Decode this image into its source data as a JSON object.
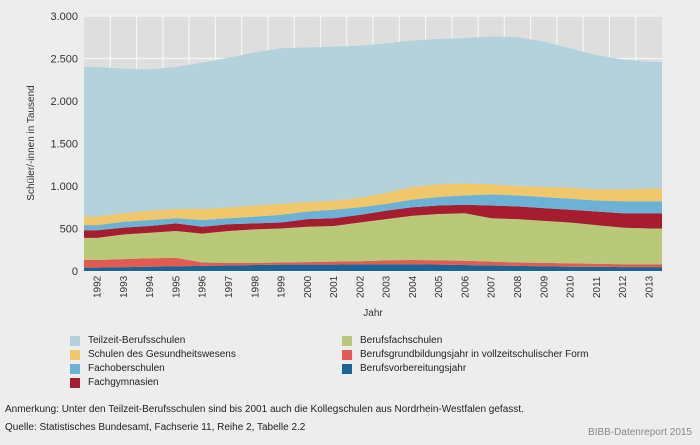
{
  "chart_data": {
    "type": "area",
    "stacked": true,
    "title": "",
    "xlabel": "Jahr",
    "ylabel": "Schüler/-innen in Tausend",
    "ylim": [
      0,
      3000
    ],
    "yticks": [
      0,
      500,
      1000,
      1500,
      2000,
      2500,
      3000
    ],
    "ytick_labels": [
      "0",
      "500",
      "1.000",
      "1.500",
      "2.000",
      "2.500",
      "3.000"
    ],
    "grid": true,
    "legend_position": "bottom",
    "categories": [
      "1992",
      "1993",
      "1994",
      "1995",
      "1996",
      "1997",
      "1998",
      "1999",
      "2000",
      "2001",
      "2002",
      "2003",
      "2004",
      "2005",
      "2006",
      "2007",
      "2008",
      "2009",
      "2010",
      "2011",
      "2012",
      "2013"
    ],
    "series": [
      {
        "name": "Berufsvorbereitungsjahr",
        "color": "#1a6496",
        "values": [
          40,
          45,
          50,
          55,
          60,
          65,
          70,
          75,
          75,
          75,
          80,
          80,
          80,
          75,
          70,
          65,
          60,
          55,
          50,
          50,
          45,
          45
        ]
      },
      {
        "name": "Berufsgrundbildungsjahr in vollzeitschulischer Form",
        "color": "#e35a52",
        "values": [
          90,
          95,
          100,
          100,
          40,
          30,
          25,
          25,
          30,
          35,
          35,
          45,
          50,
          50,
          50,
          45,
          40,
          40,
          40,
          35,
          35,
          35
        ]
      },
      {
        "name": "Berufsfachschulen",
        "color": "#b8c97a",
        "values": [
          260,
          290,
          300,
          315,
          340,
          375,
          395,
          400,
          415,
          420,
          455,
          485,
          520,
          545,
          560,
          510,
          510,
          495,
          480,
          455,
          430,
          420
        ]
      },
      {
        "name": "Fachgymnasien",
        "color": "#a51d2f",
        "values": [
          90,
          80,
          80,
          90,
          80,
          80,
          70,
          70,
          90,
          90,
          90,
          100,
          100,
          100,
          100,
          150,
          150,
          150,
          150,
          160,
          170,
          180
        ]
      },
      {
        "name": "Fachoberschulen",
        "color": "#6cb2d6",
        "values": [
          60,
          70,
          70,
          60,
          80,
          70,
          80,
          90,
          90,
          100,
          90,
          80,
          90,
          100,
          110,
          130,
          130,
          130,
          130,
          130,
          140,
          140
        ]
      },
      {
        "name": "Schulen des Gesundheitswesens",
        "color": "#f0c76b",
        "values": [
          100,
          100,
          110,
          110,
          130,
          130,
          130,
          130,
          110,
          110,
          110,
          130,
          150,
          150,
          140,
          120,
          110,
          120,
          130,
          130,
          140,
          150
        ]
      },
      {
        "name": "Teilzeit-Berufsschulen",
        "color": "#b3d2dc",
        "values": [
          1760,
          1700,
          1660,
          1670,
          1720,
          1760,
          1800,
          1830,
          1820,
          1810,
          1790,
          1760,
          1720,
          1710,
          1710,
          1740,
          1750,
          1710,
          1640,
          1580,
          1530,
          1490
        ]
      }
    ]
  },
  "legend": {
    "left": [
      {
        "label": "Teilzeit-Berufsschulen",
        "color": "#b3d2dc"
      },
      {
        "label": "Schulen des Gesundheitswesens",
        "color": "#f0c76b"
      },
      {
        "label": "Fachoberschulen",
        "color": "#6cb2d6"
      },
      {
        "label": "Fachgymnasien",
        "color": "#a51d2f"
      }
    ],
    "right": [
      {
        "label": "Berufsfachschulen",
        "color": "#b8c97a"
      },
      {
        "label": "Berufsgrundbildungsjahr in vollzeitschulischer Form",
        "color": "#e35a52"
      },
      {
        "label": "Berufsvorbereitungsjahr",
        "color": "#1a6496"
      }
    ]
  },
  "notes": {
    "annotation": "Anmerkung: Unter den Teilzeit-Berufsschulen sind bis 2001 auch die Kollegschulen aus Nordrhein-Westfalen gefasst.",
    "source": "Quelle: Statistisches Bundesamt, Fachserie 11, Reihe 2, Tabelle 2.2",
    "brand": "BIBB-Datenreport 2015"
  }
}
